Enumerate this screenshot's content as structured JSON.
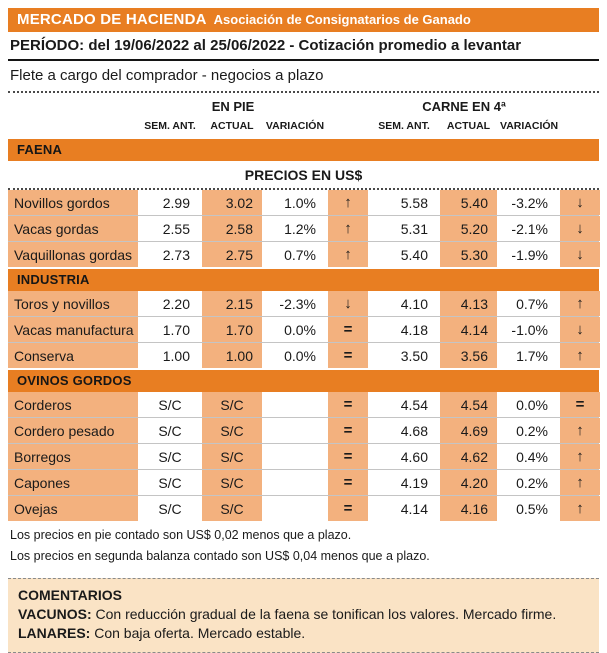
{
  "colors": {
    "accent_orange": "#E87E22",
    "cell_peach": "#F3B17E",
    "comments_bg": "#FAE3C5"
  },
  "header": {
    "title": "MERCADO DE HACIENDA",
    "subtitle": "Asociación de Consignatarios de Ganado"
  },
  "period_line": "PERÍODO: del 19/06/2022 al 25/06/2022 - Cotización promedio a levantar",
  "freight_line": "Flete a cargo del comprador - negocios a plazo",
  "table": {
    "group_headers": [
      "EN PIE",
      "CARNE EN 4ª"
    ],
    "sub_headers": [
      "SEM. ANT.",
      "ACTUAL",
      "VARIACIÓN"
    ],
    "prices_note": "PRECIOS EN US$",
    "sections": [
      {
        "title": "FAENA",
        "rows": [
          {
            "label": "Novillos gordos",
            "pie_sem": "2.99",
            "pie_act": "3.02",
            "pie_var": "1.0%",
            "pie_trend": "↑",
            "carne_sem": "5.58",
            "carne_act": "5.40",
            "carne_var": "-3.2%",
            "carne_trend": "↓"
          },
          {
            "label": "Vacas gordas",
            "pie_sem": "2.55",
            "pie_act": "2.58",
            "pie_var": "1.2%",
            "pie_trend": "↑",
            "carne_sem": "5.31",
            "carne_act": "5.20",
            "carne_var": "-2.1%",
            "carne_trend": "↓"
          },
          {
            "label": "Vaquillonas gordas",
            "pie_sem": "2.73",
            "pie_act": "2.75",
            "pie_var": "0.7%",
            "pie_trend": "↑",
            "carne_sem": "5.40",
            "carne_act": "5.30",
            "carne_var": "-1.9%",
            "carne_trend": "↓"
          }
        ]
      },
      {
        "title": "INDUSTRIA",
        "rows": [
          {
            "label": "Toros y novillos",
            "pie_sem": "2.20",
            "pie_act": "2.15",
            "pie_var": "-2.3%",
            "pie_trend": "↓",
            "carne_sem": "4.10",
            "carne_act": "4.13",
            "carne_var": "0.7%",
            "carne_trend": "↑"
          },
          {
            "label": "Vacas manufactura",
            "pie_sem": "1.70",
            "pie_act": "1.70",
            "pie_var": "0.0%",
            "pie_trend": "=",
            "carne_sem": "4.18",
            "carne_act": "4.14",
            "carne_var": "-1.0%",
            "carne_trend": "↓"
          },
          {
            "label": "Conserva",
            "pie_sem": "1.00",
            "pie_act": "1.00",
            "pie_var": "0.0%",
            "pie_trend": "=",
            "carne_sem": "3.50",
            "carne_act": "3.56",
            "carne_var": "1.7%",
            "carne_trend": "↑"
          }
        ]
      },
      {
        "title": "OVINOS GORDOS",
        "rows": [
          {
            "label": "Corderos",
            "pie_sem": "S/C",
            "pie_act": "S/C",
            "pie_var": "",
            "pie_trend": "=",
            "carne_sem": "4.54",
            "carne_act": "4.54",
            "carne_var": "0.0%",
            "carne_trend": "="
          },
          {
            "label": "Cordero pesado",
            "pie_sem": "S/C",
            "pie_act": "S/C",
            "pie_var": "",
            "pie_trend": "=",
            "carne_sem": "4.68",
            "carne_act": "4.69",
            "carne_var": "0.2%",
            "carne_trend": "↑"
          },
          {
            "label": "Borregos",
            "pie_sem": "S/C",
            "pie_act": "S/C",
            "pie_var": "",
            "pie_trend": "=",
            "carne_sem": "4.60",
            "carne_act": "4.62",
            "carne_var": "0.4%",
            "carne_trend": "↑"
          },
          {
            "label": "Capones",
            "pie_sem": "S/C",
            "pie_act": "S/C",
            "pie_var": "",
            "pie_trend": "=",
            "carne_sem": "4.19",
            "carne_act": "4.20",
            "carne_var": "0.2%",
            "carne_trend": "↑"
          },
          {
            "label": "Ovejas",
            "pie_sem": "S/C",
            "pie_act": "S/C",
            "pie_var": "",
            "pie_trend": "=",
            "carne_sem": "4.14",
            "carne_act": "4.16",
            "carne_var": "0.5%",
            "carne_trend": "↑"
          }
        ]
      }
    ]
  },
  "footnotes": [
    "Los precios en pie contado son US$ 0,02 menos que a plazo.",
    "Los precios en segunda balanza contado son US$ 0,04 menos que a plazo."
  ],
  "comments": {
    "title": "COMENTARIOS",
    "items": [
      {
        "label": "VACUNOS:",
        "text": "Con reducción gradual de la faena se tonifican los valores. Mercado firme."
      },
      {
        "label": "LANARES:",
        "text": "Con baja oferta. Mercado estable."
      }
    ]
  }
}
